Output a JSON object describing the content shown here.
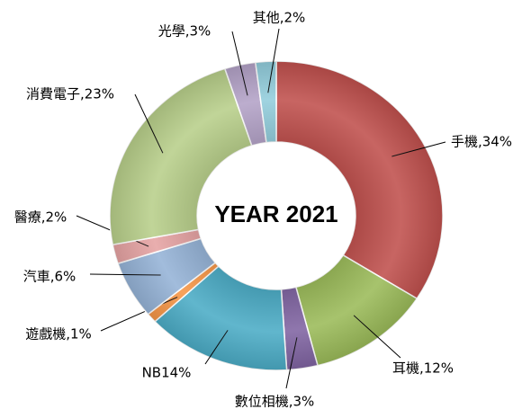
{
  "chart_data": {
    "type": "donut",
    "title": "YEAR 2021",
    "values": [
      34,
      12,
      3,
      14,
      1,
      6,
      2,
      23,
      3,
      2
    ],
    "value_labels": [
      "手機,34%",
      "耳機,12%",
      "數位相機,3%",
      "NB14%",
      "遊戲機,1%",
      "汽車,6%",
      "醫療,2%",
      "消費電子,23%",
      "光學,3%",
      "其他,2%"
    ],
    "colors": [
      "#c0504d",
      "#9bbb59",
      "#8064a2",
      "#4bacc6",
      "#f79646",
      "#95b3d7",
      "#e6a3a3",
      "#b8cf8a",
      "#b3a2c7",
      "#92cddc"
    ]
  }
}
